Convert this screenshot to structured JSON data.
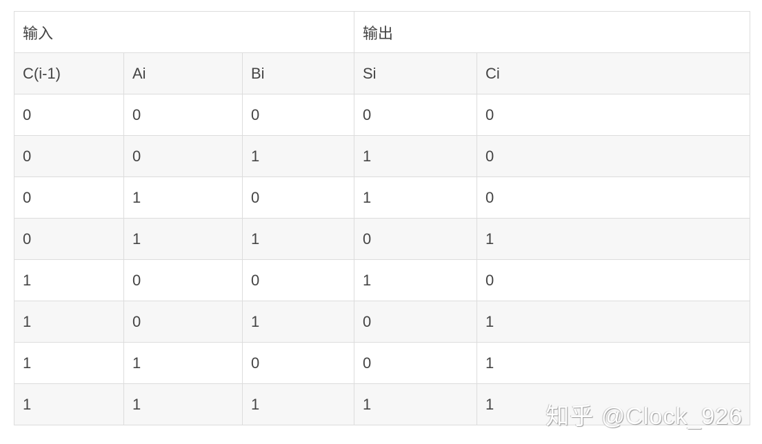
{
  "group_headers": [
    "输入",
    "输出"
  ],
  "columns": [
    "C(i-1)",
    "Ai",
    "Bi",
    "Si",
    "Ci"
  ],
  "rows": [
    [
      "0",
      "0",
      "0",
      "0",
      "0"
    ],
    [
      "0",
      "0",
      "1",
      "1",
      "0"
    ],
    [
      "0",
      "1",
      "0",
      "1",
      "0"
    ],
    [
      "0",
      "1",
      "1",
      "0",
      "1"
    ],
    [
      "1",
      "0",
      "0",
      "1",
      "0"
    ],
    [
      "1",
      "0",
      "1",
      "0",
      "1"
    ],
    [
      "1",
      "1",
      "0",
      "0",
      "1"
    ],
    [
      "1",
      "1",
      "1",
      "1",
      "1"
    ]
  ],
  "watermark": "知乎 @Clock_926"
}
